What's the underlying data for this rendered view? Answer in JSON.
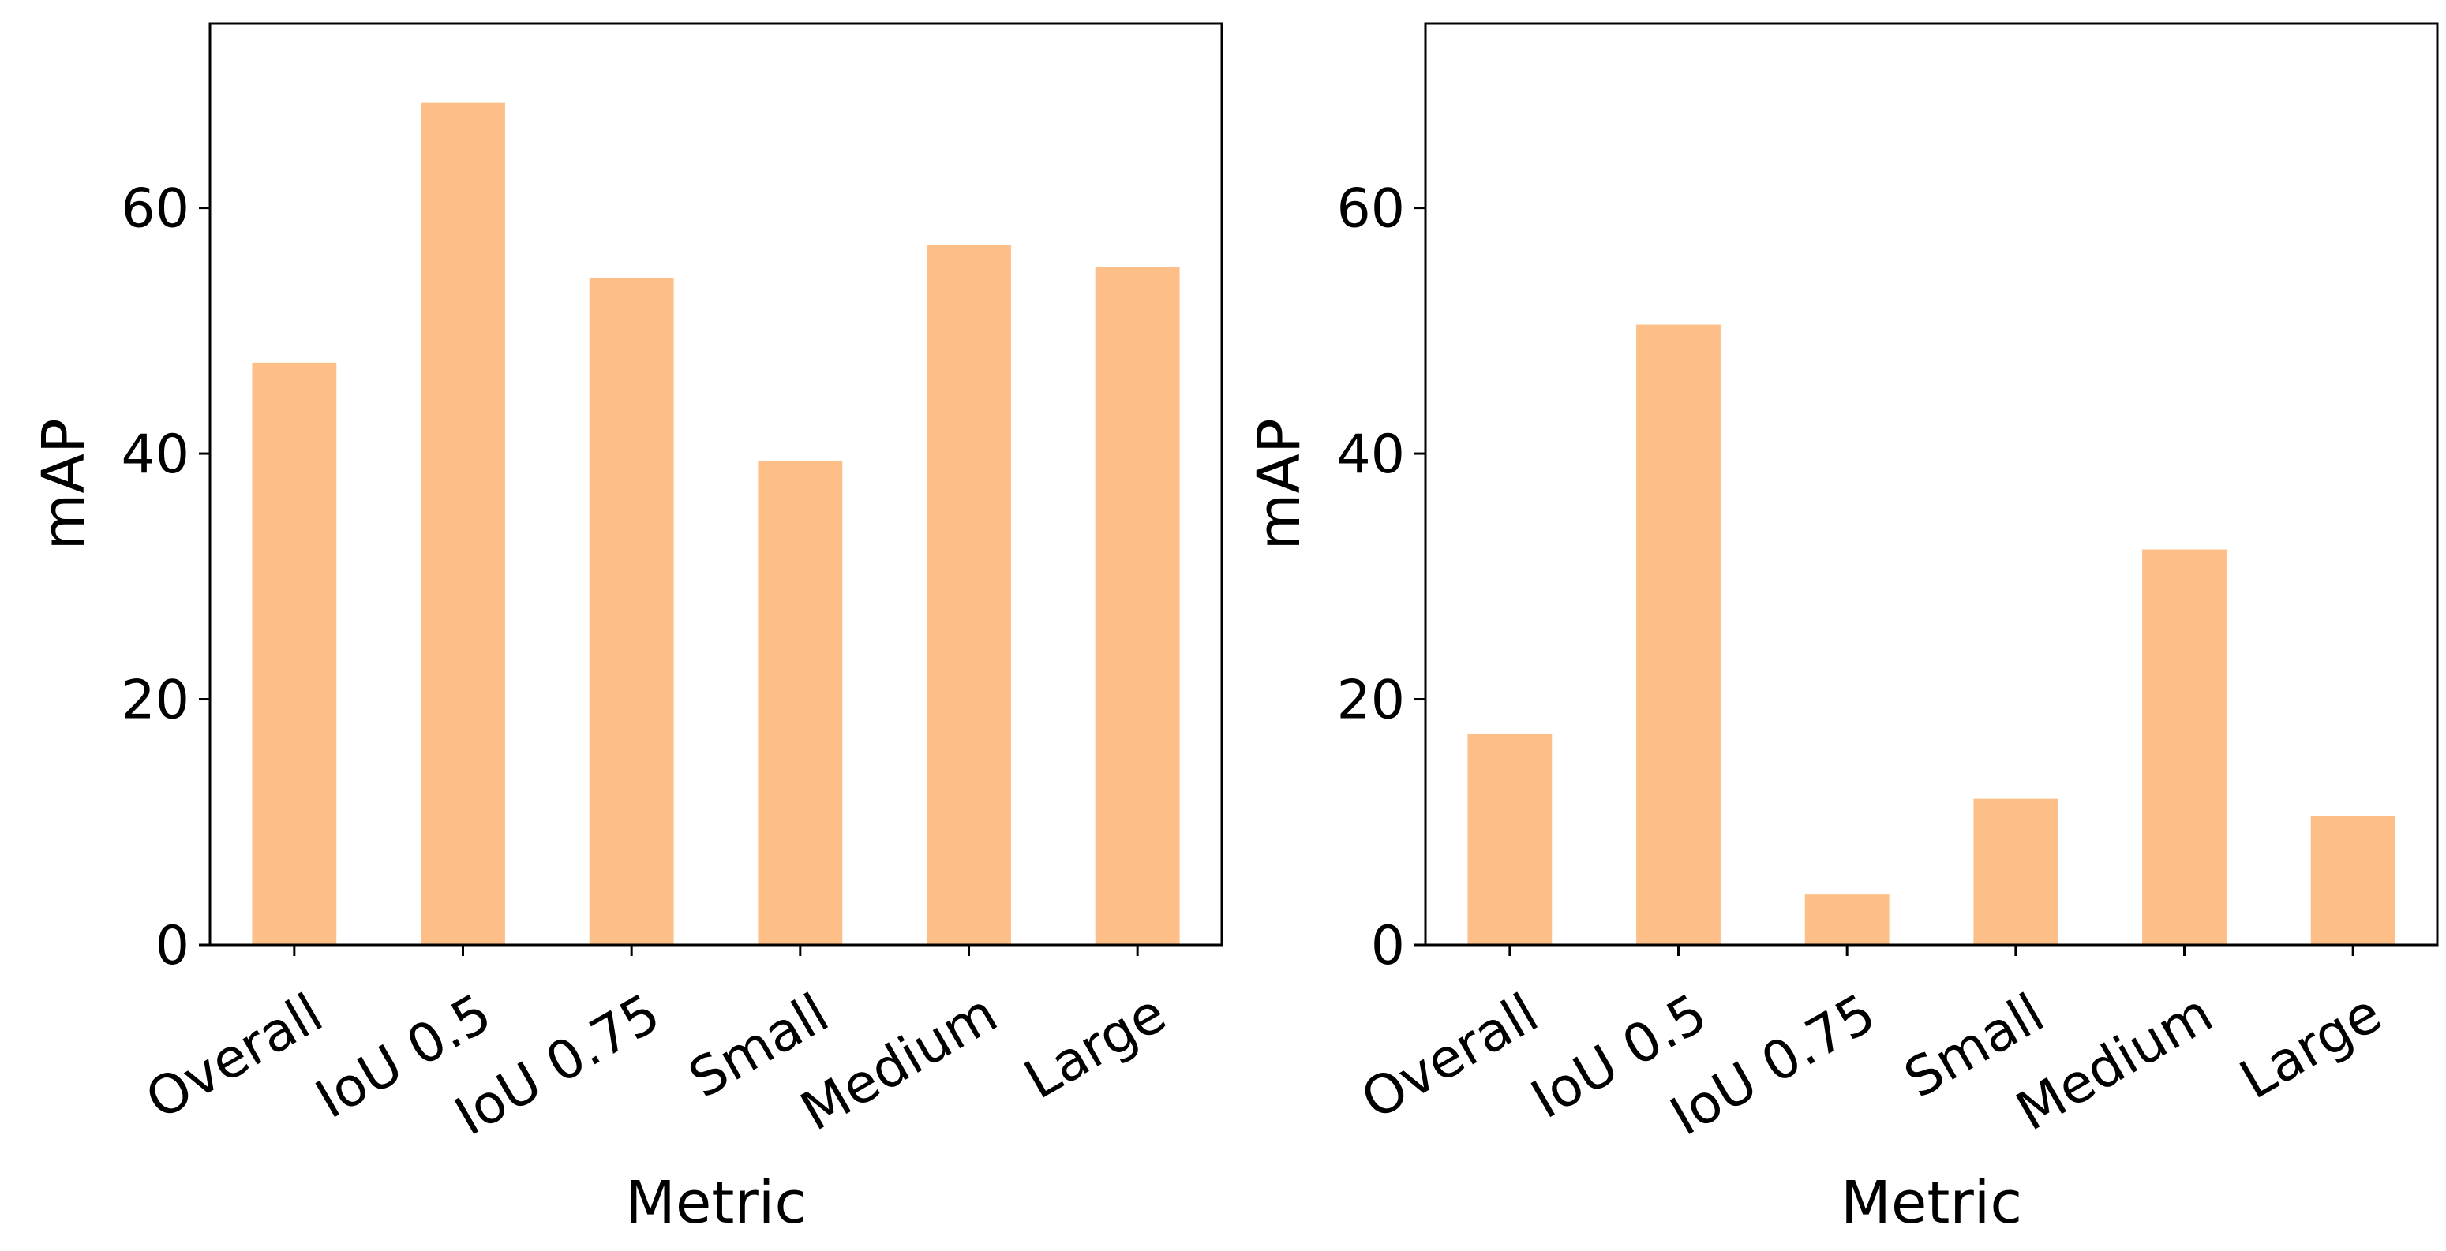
{
  "chart_data": [
    {
      "type": "bar",
      "categories": [
        "Overall",
        "IoU 0.5",
        "IoU 0.75",
        "Small",
        "Medium",
        "Large"
      ],
      "values": [
        47.4,
        68.6,
        54.3,
        39.4,
        57.0,
        55.2
      ],
      "xlabel": "Metric",
      "ylabel": "mAP",
      "ylim": [
        0,
        75
      ],
      "yticks": [
        0,
        20,
        40,
        60
      ],
      "bar_color": "#fdbf87",
      "grid": false
    },
    {
      "type": "bar",
      "categories": [
        "Overall",
        "IoU 0.5",
        "IoU 0.75",
        "Small",
        "Medium",
        "Large"
      ],
      "values": [
        17.2,
        50.5,
        4.1,
        11.9,
        32.2,
        10.5
      ],
      "xlabel": "Metric",
      "ylabel": "mAP",
      "ylim": [
        0,
        75
      ],
      "yticks": [
        0,
        20,
        40,
        60
      ],
      "bar_color": "#fdbf87",
      "grid": false
    }
  ]
}
